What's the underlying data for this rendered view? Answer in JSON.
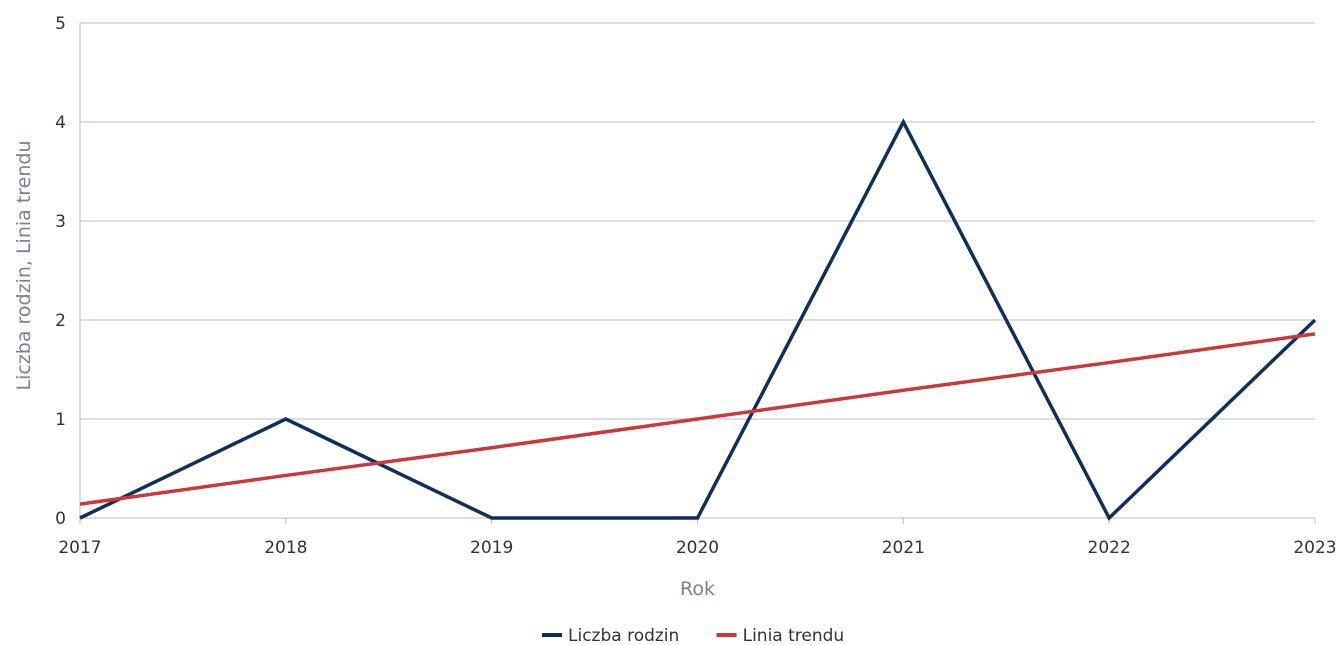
{
  "chart_data": {
    "type": "line",
    "title": "",
    "xlabel": "Rok",
    "ylabel": "Liczba rodzin, Linia trendu",
    "x": [
      "2017",
      "2018",
      "2019",
      "2020",
      "2021",
      "2022",
      "2023"
    ],
    "ylim": [
      0,
      5
    ],
    "yticks": [
      0,
      1,
      2,
      3,
      4,
      5
    ],
    "grid": true,
    "legend_position": "bottom",
    "series": [
      {
        "name": "Liczba rodzin",
        "color": "#0d2f5a",
        "values": [
          0,
          1,
          0,
          0,
          4,
          0,
          2
        ]
      },
      {
        "name": "Linia trendu",
        "color": "#c73a3a",
        "values": [
          0.14,
          0.43,
          0.71,
          1.0,
          1.29,
          1.57,
          1.86
        ]
      }
    ]
  }
}
